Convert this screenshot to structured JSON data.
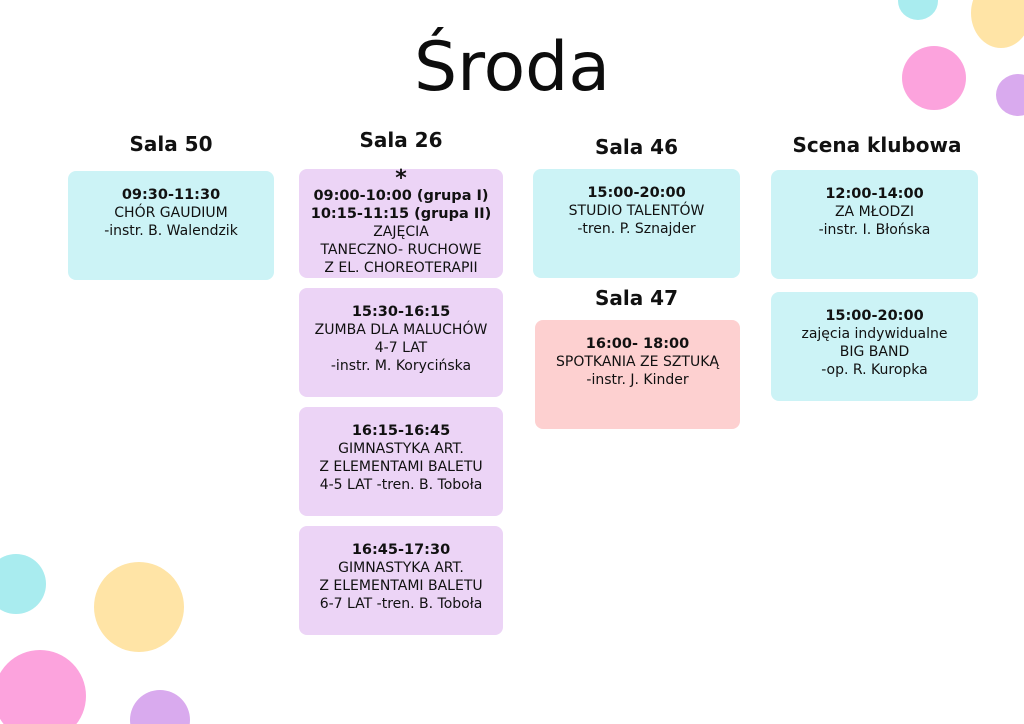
{
  "title": "Środa",
  "colors": {
    "cyan": "#ccf3f6",
    "violet": "#ecd4f6",
    "pink": "#fdd0d0",
    "dot_cyan": "#a9ecef",
    "dot_yellow": "#ffe4a6",
    "dot_pink": "#fca3dd",
    "dot_violet": "#d9aaee"
  },
  "columns": {
    "sala50": {
      "title": "Sala 50",
      "cards": [
        {
          "time": "09:30-11:30",
          "lines": [
            "CHÓR GAUDIUM",
            "-instr. B. Walendzik"
          ]
        }
      ]
    },
    "sala26": {
      "title": "Sala 26",
      "cards": [
        {
          "marker": "*",
          "times": [
            "09:00-10:00 (grupa I)",
            "10:15-11:15 (grupa II)"
          ],
          "lines": [
            "ZAJĘCIA",
            "TANECZNO- RUCHOWE",
            "Z EL. CHOREOTERAPII"
          ]
        },
        {
          "time": "15:30-16:15",
          "lines": [
            "ZUMBA DLA MALUCHÓW",
            "4-7 LAT",
            "-instr. M. Korycińska"
          ]
        },
        {
          "time": "16:15-16:45",
          "lines": [
            "GIMNASTYKA ART.",
            "Z ELEMENTAMI BALETU",
            "4-5 LAT -tren. B. Toboła"
          ]
        },
        {
          "time": "16:45-17:30",
          "lines": [
            "GIMNASTYKA ART.",
            "Z ELEMENTAMI BALETU",
            "6-7 LAT -tren. B. Toboła"
          ]
        }
      ]
    },
    "sala46": {
      "title": "Sala 46",
      "cards": [
        {
          "time": "15:00-20:00",
          "lines": [
            "STUDIO TALENTÓW",
            "-tren. P. Sznajder"
          ]
        }
      ]
    },
    "sala47": {
      "title": "Sala 47",
      "cards": [
        {
          "time": "16:00- 18:00",
          "lines": [
            "SPOTKANIA ZE SZTUKĄ",
            "-instr. J. Kinder"
          ]
        }
      ]
    },
    "scena": {
      "title": "Scena klubowa",
      "cards": [
        {
          "time": "12:00-14:00",
          "lines": [
            "ZA MŁODZI",
            "-instr. I. Błońska"
          ]
        },
        {
          "time": "15:00-20:00",
          "lines": [
            "zajęcia indywidualne",
            "BIG BAND",
            "-op. R. Kuropka"
          ]
        }
      ]
    }
  }
}
